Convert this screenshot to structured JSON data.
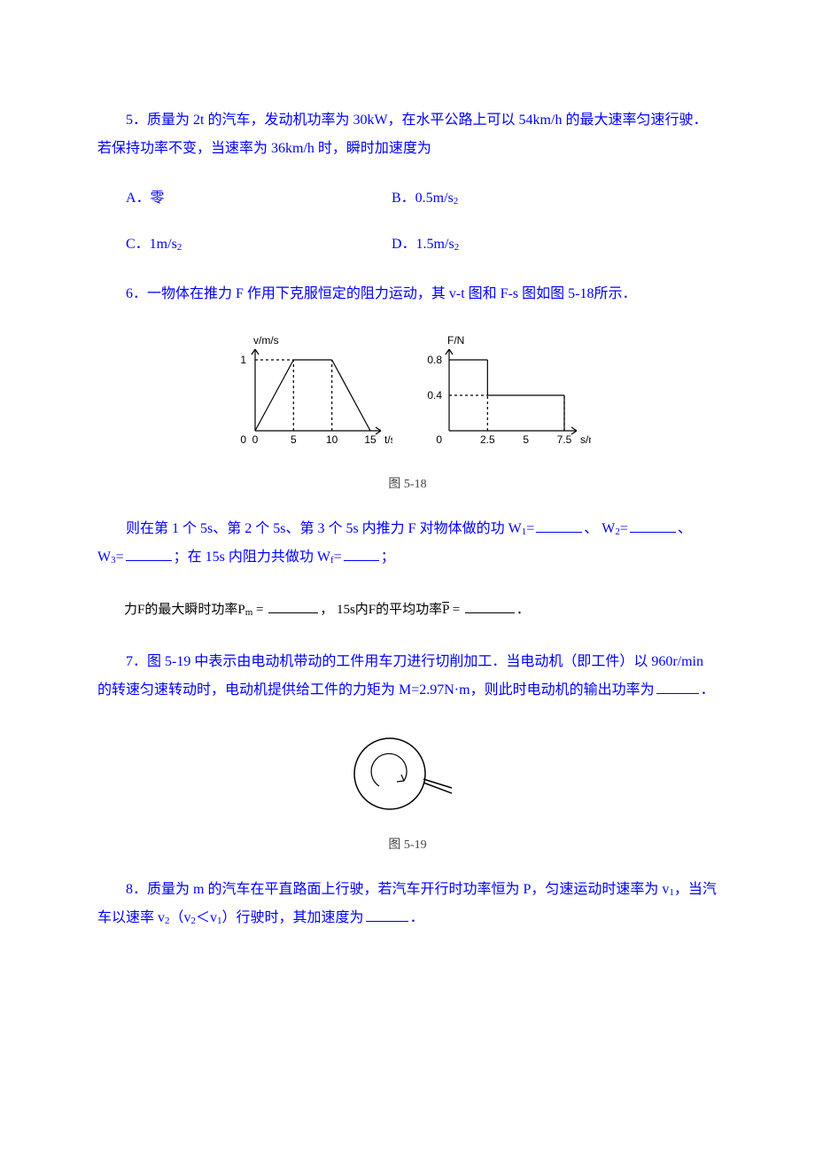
{
  "q5": {
    "stem": "5．质量为 2t 的汽车，发动机功率为 30kW，在水平公路上可以 54km/h 的最大速率匀速行驶．若保持功率不变，当速率为 36km/h 时，瞬时加速度为",
    "optA_prefix": "A．零",
    "optB_prefix": "B．0.5m/s",
    "optC_prefix": "C．1m/s",
    "optD_prefix": "D．1.5m/s",
    "sub": "2"
  },
  "q6": {
    "stem": "6．一物体在推力 F 作用下克服恒定的阻力运动，其 v-t 图和 F-s 图如图 5-18所示．",
    "fill_pre": "则在第 1 个 5s、第 2 个 5s、第 3 个 5s 内推力 F 对物体做的功 W",
    "w1_label": "=",
    "w2_label": "=",
    "w3_label": "=",
    "mid": "；在 15s 内阻力共做功 W",
    "wf_eq": "=",
    "tail": "；",
    "one": "1",
    "two": "2",
    "three": "3",
    "f": "f",
    "black_pre": "力F的最大瞬时功率P",
    "black_m": "m",
    "black_eq1": " = ",
    "black_mid": "，  15s内F的平均功率",
    "pbar": "P",
    "black_eq2": " = ",
    "black_dot": "．",
    "caption": "图 5-18",
    "vt_chart": {
      "type": "line",
      "x_label": "t/s",
      "y_label": "v/m/s",
      "x_ticks": [
        0,
        5,
        10,
        15
      ],
      "y_ticks": [
        0,
        1
      ],
      "points": [
        [
          0,
          0
        ],
        [
          5,
          1
        ],
        [
          10,
          1
        ],
        [
          15,
          0
        ]
      ],
      "dash_lines": [
        {
          "from": [
            5,
            0
          ],
          "to": [
            5,
            1
          ]
        },
        {
          "from": [
            10,
            0
          ],
          "to": [
            10,
            1
          ]
        },
        {
          "from": [
            0,
            1
          ],
          "to": [
            5,
            1
          ]
        }
      ],
      "stroke": "#000000",
      "tick_font": 12
    },
    "fs_chart": {
      "type": "step",
      "x_label": "s/m",
      "y_label": "F/N",
      "x_ticks": [
        0,
        2.5,
        5,
        7.5
      ],
      "y_ticks": [
        0,
        0.4,
        0.8
      ],
      "segments": [
        {
          "from": [
            0,
            0.8
          ],
          "to": [
            2.5,
            0.8
          ]
        },
        {
          "from": [
            2.5,
            0.8
          ],
          "to": [
            2.5,
            0.4
          ]
        },
        {
          "from": [
            2.5,
            0.4
          ],
          "to": [
            7.5,
            0.4
          ]
        },
        {
          "from": [
            7.5,
            0.4
          ],
          "to": [
            7.5,
            0
          ]
        }
      ],
      "dash_lines": [
        {
          "from": [
            2.5,
            0
          ],
          "to": [
            2.5,
            0.4
          ]
        },
        {
          "from": [
            0,
            0.4
          ],
          "to": [
            2.5,
            0.4
          ]
        },
        {
          "from": [
            7.5,
            0
          ],
          "to": [
            7.5,
            0
          ]
        }
      ],
      "stroke": "#000000",
      "tick_font": 12
    }
  },
  "q7": {
    "stem_a": "7．图 5-19 中表示由电动机带动的工件用车刀进行切削加工．当电动机（即工件）以 960r/min 的转速匀速转动时，电动机提供给工件的力矩为 M=2.97N·m，则此时电动机的输出功率为",
    "stem_b": "．",
    "caption": "图 5-19",
    "diagram": {
      "type": "infographic",
      "circle_stroke": "#000000",
      "circle_r": 40,
      "arrow_stroke": "#000000",
      "tool_stroke": "#000000"
    }
  },
  "q8": {
    "stem_a": "8．质量为 m 的汽车在平直路面上行驶，若汽车开行时功率恒为 P，匀速运动时速率为 v",
    "one": "1",
    "mid": "，当汽车以速率 v",
    "two": "2",
    "paren": "（v",
    "lt": "＜v",
    "paren2": "）行驶时，其加速度为",
    "tail": "．"
  },
  "blank_widths": {
    "w1": 52,
    "w2": 52,
    "w3": 52,
    "wf": 40,
    "pm": 56,
    "pbar": 56,
    "q7": 48,
    "q8": 48
  }
}
